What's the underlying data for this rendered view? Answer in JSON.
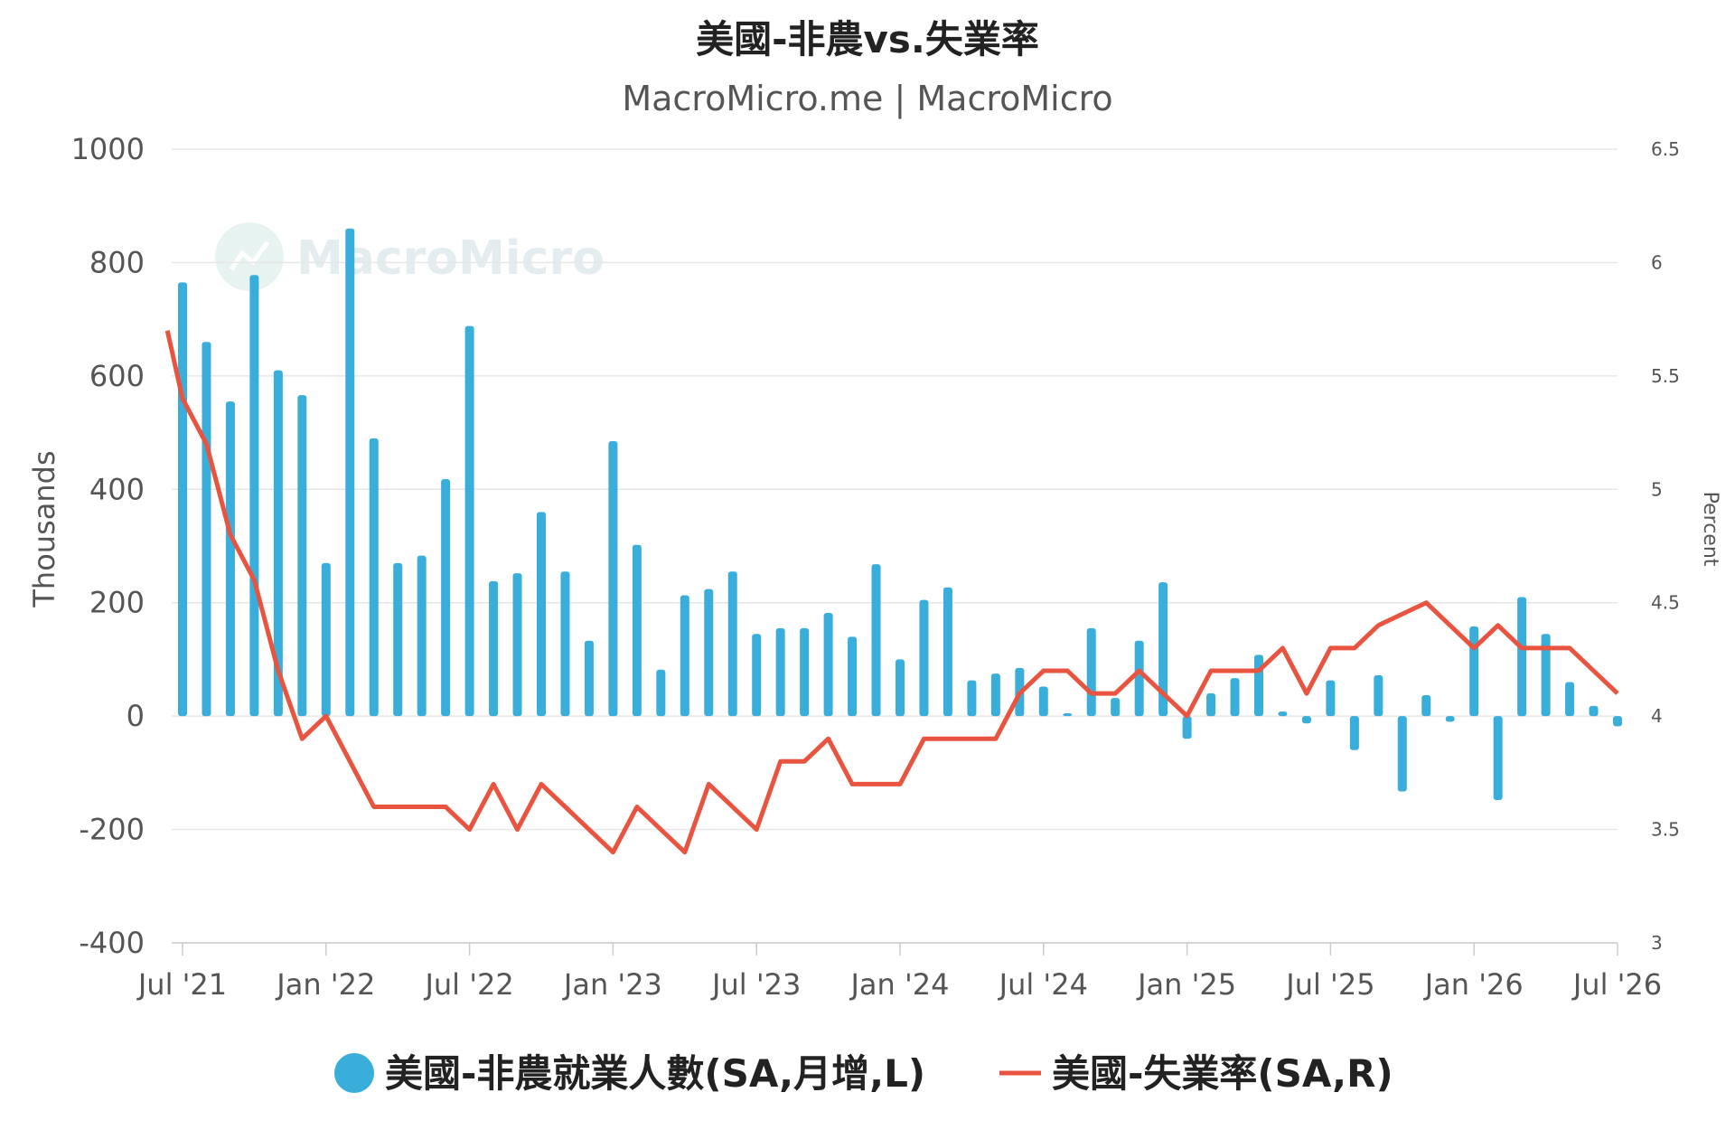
{
  "chart_data": {
    "type": "bar+line",
    "title": "美國-非農vs.失業率",
    "subtitle": "MacroMicro.me | MacroMicro",
    "watermark": "MacroMicro",
    "y_left": {
      "label": "Thousands",
      "ticks": [
        "1000",
        "800",
        "600",
        "400",
        "200",
        "0",
        "-200",
        "-400"
      ],
      "range": [
        -400,
        1000
      ]
    },
    "y_right": {
      "label": "Percent",
      "ticks": [
        "6.5",
        "6",
        "5.5",
        "5",
        "4.5",
        "4",
        "3.5",
        "3"
      ],
      "range": [
        3,
        6.5
      ]
    },
    "x_ticks": [
      "Jul '21",
      "Jan '22",
      "Jul '22",
      "Jan '23",
      "Jul '23",
      "Jan '24",
      "Jul '24",
      "Jan '25",
      "Jul '25",
      "Jan '26",
      "Jul '26"
    ],
    "x_range": [
      "2021-07",
      "2026-07"
    ],
    "grid": true,
    "legend_position": "bottom",
    "bar_series": {
      "name": "美國-非農就業人數(SA,月增,L)",
      "color": "#3aaedb",
      "points": [
        [
          "2021-07",
          765
        ],
        [
          "2021-08",
          660
        ],
        [
          "2021-09",
          555
        ],
        [
          "2021-10",
          778
        ],
        [
          "2021-11",
          610
        ],
        [
          "2021-12",
          566
        ],
        [
          "2022-01",
          270
        ],
        [
          "2022-02",
          860
        ],
        [
          "2022-03",
          490
        ],
        [
          "2022-04",
          270
        ],
        [
          "2022-05",
          283
        ],
        [
          "2022-06",
          418
        ],
        [
          "2022-07",
          688
        ],
        [
          "2022-08",
          238
        ],
        [
          "2022-09",
          252
        ],
        [
          "2022-10",
          360
        ],
        [
          "2022-11",
          255
        ],
        [
          "2022-12",
          133
        ],
        [
          "2023-01",
          485
        ],
        [
          "2023-02",
          302
        ],
        [
          "2023-03",
          82
        ],
        [
          "2023-04",
          213
        ],
        [
          "2023-05",
          224
        ],
        [
          "2023-06",
          255
        ],
        [
          "2023-07",
          145
        ],
        [
          "2023-08",
          155
        ],
        [
          "2023-09",
          155
        ],
        [
          "2023-10",
          182
        ],
        [
          "2023-11",
          140
        ],
        [
          "2023-12",
          268
        ],
        [
          "2024-01",
          100
        ],
        [
          "2024-02",
          205
        ],
        [
          "2024-03",
          227
        ],
        [
          "2024-04",
          63
        ],
        [
          "2024-05",
          75
        ],
        [
          "2024-06",
          85
        ],
        [
          "2024-07",
          52
        ],
        [
          "2024-08",
          5
        ],
        [
          "2024-09",
          155
        ],
        [
          "2024-10",
          32
        ],
        [
          "2024-11",
          133
        ],
        [
          "2024-12",
          236
        ],
        [
          "2025-01",
          -40
        ],
        [
          "2025-02",
          40
        ],
        [
          "2025-03",
          67
        ],
        [
          "2025-04",
          108
        ],
        [
          "2025-05",
          8
        ],
        [
          "2025-06",
          -13
        ],
        [
          "2025-07",
          63
        ],
        [
          "2025-08",
          -60
        ],
        [
          "2025-09",
          72
        ],
        [
          "2025-10",
          -133
        ],
        [
          "2025-11",
          37
        ],
        [
          "2025-12",
          -10
        ],
        [
          "2026-01",
          158
        ],
        [
          "2026-02",
          -148
        ],
        [
          "2026-03",
          210
        ],
        [
          "2026-04",
          145
        ],
        [
          "2026-05",
          60
        ],
        [
          "2026-06",
          18
        ],
        [
          "2026-07",
          -18
        ]
      ]
    },
    "line_series": {
      "name": "美國-失業率(SA,R)",
      "color": "#e8543f",
      "points": [
        [
          "2021-06-12",
          5.7
        ],
        [
          "2021-07",
          5.4
        ],
        [
          "2021-08",
          5.2
        ],
        [
          "2021-09",
          4.8
        ],
        [
          "2021-10",
          4.6
        ],
        [
          "2021-11",
          4.2
        ],
        [
          "2021-12",
          3.9
        ],
        [
          "2022-01",
          4.0
        ],
        [
          "2022-02",
          3.8
        ],
        [
          "2022-03",
          3.6
        ],
        [
          "2022-04",
          3.6
        ],
        [
          "2022-05",
          3.6
        ],
        [
          "2022-06",
          3.6
        ],
        [
          "2022-07",
          3.5
        ],
        [
          "2022-08",
          3.7
        ],
        [
          "2022-09",
          3.5
        ],
        [
          "2022-10",
          3.7
        ],
        [
          "2022-11",
          3.6
        ],
        [
          "2022-12",
          3.5
        ],
        [
          "2023-01",
          3.4
        ],
        [
          "2023-02",
          3.6
        ],
        [
          "2023-03",
          3.5
        ],
        [
          "2023-04",
          3.4
        ],
        [
          "2023-05",
          3.7
        ],
        [
          "2023-06",
          3.6
        ],
        [
          "2023-07",
          3.5
        ],
        [
          "2023-08",
          3.8
        ],
        [
          "2023-09",
          3.8
        ],
        [
          "2023-10",
          3.9
        ],
        [
          "2023-11",
          3.7
        ],
        [
          "2023-12",
          3.7
        ],
        [
          "2024-01",
          3.7
        ],
        [
          "2024-02",
          3.9
        ],
        [
          "2024-03",
          3.9
        ],
        [
          "2024-04",
          3.9
        ],
        [
          "2024-05",
          3.9
        ],
        [
          "2024-06",
          4.1
        ],
        [
          "2024-07",
          4.2
        ],
        [
          "2024-08",
          4.2
        ],
        [
          "2024-09",
          4.1
        ],
        [
          "2024-10",
          4.1
        ],
        [
          "2024-11",
          4.2
        ],
        [
          "2024-12",
          4.1
        ],
        [
          "2025-01",
          4.0
        ],
        [
          "2025-02",
          4.2
        ],
        [
          "2025-03",
          4.2
        ],
        [
          "2025-04",
          4.2
        ],
        [
          "2025-05",
          4.3
        ],
        [
          "2025-06",
          4.1
        ],
        [
          "2025-07",
          4.3
        ],
        [
          "2025-08",
          4.3
        ],
        [
          "2025-09",
          4.4
        ],
        [
          "2025-10",
          4.45
        ],
        [
          "2025-11",
          4.5
        ],
        [
          "2025-12",
          4.4
        ],
        [
          "2026-01",
          4.3
        ],
        [
          "2026-02",
          4.4
        ],
        [
          "2026-03",
          4.3
        ],
        [
          "2026-04",
          4.3
        ],
        [
          "2026-05",
          4.3
        ],
        [
          "2026-06",
          4.2
        ],
        [
          "2026-07",
          4.1
        ]
      ]
    }
  }
}
